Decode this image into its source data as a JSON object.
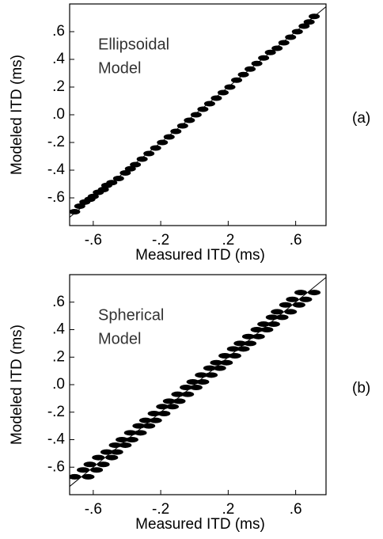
{
  "chart_data": [
    {
      "type": "scatter",
      "panel_label": "(a)",
      "annotation": [
        "Ellipsoidal",
        "Model"
      ],
      "x_label": "Measured ITD (ms)",
      "y_label": "Modeled ITD (ms)",
      "color": "#000000",
      "xlim": [
        -0.74,
        0.78
      ],
      "ylim": [
        -0.8,
        0.8
      ],
      "xticks": [
        {
          "value": -0.6,
          "label": "-.6"
        },
        {
          "value": -0.2,
          "label": "-.2"
        },
        {
          "value": 0.2,
          "label": ".2"
        },
        {
          "value": 0.6,
          "label": ".6"
        }
      ],
      "yticks": [
        {
          "value": 0.6,
          "label": ".6"
        },
        {
          "value": 0.4,
          "label": ".4"
        },
        {
          "value": 0.2,
          "label": ".2"
        },
        {
          "value": 0.0,
          "label": ".0"
        },
        {
          "value": -0.2,
          "label": "-.2"
        },
        {
          "value": -0.4,
          "label": "-.4"
        },
        {
          "value": -0.6,
          "label": "-.6"
        }
      ],
      "x": [
        -0.71,
        -0.68,
        -0.65,
        -0.62,
        -0.6,
        -0.57,
        -0.54,
        -0.52,
        -0.49,
        -0.45,
        -0.41,
        -0.38,
        -0.35,
        -0.31,
        -0.27,
        -0.23,
        -0.19,
        -0.15,
        -0.11,
        -0.07,
        -0.03,
        0.01,
        0.05,
        0.09,
        0.13,
        0.17,
        0.21,
        0.25,
        0.29,
        0.33,
        0.37,
        0.41,
        0.45,
        0.49,
        0.53,
        0.57,
        0.61,
        0.65,
        0.68,
        0.71
      ],
      "y": [
        -0.7,
        -0.66,
        -0.63,
        -0.61,
        -0.59,
        -0.56,
        -0.54,
        -0.51,
        -0.49,
        -0.46,
        -0.42,
        -0.39,
        -0.36,
        -0.32,
        -0.28,
        -0.24,
        -0.2,
        -0.16,
        -0.12,
        -0.08,
        -0.04,
        0.0,
        0.04,
        0.08,
        0.12,
        0.16,
        0.2,
        0.25,
        0.29,
        0.33,
        0.37,
        0.41,
        0.45,
        0.48,
        0.52,
        0.56,
        0.6,
        0.64,
        0.67,
        0.71
      ]
    },
    {
      "type": "scatter",
      "panel_label": "(b)",
      "annotation": [
        "Spherical",
        "Model"
      ],
      "x_label": "Measured ITD (ms)",
      "y_label": "Modeled ITD (ms)",
      "color": "#000000",
      "xlim": [
        -0.74,
        0.78
      ],
      "ylim": [
        -0.8,
        0.8
      ],
      "xticks": [
        {
          "value": -0.6,
          "label": "-.6"
        },
        {
          "value": -0.2,
          "label": "-.2"
        },
        {
          "value": 0.2,
          "label": ".2"
        },
        {
          "value": 0.6,
          "label": ".6"
        }
      ],
      "yticks": [
        {
          "value": 0.6,
          "label": ".6"
        },
        {
          "value": 0.4,
          "label": ".4"
        },
        {
          "value": 0.2,
          "label": ".2"
        },
        {
          "value": 0.0,
          "label": ".0"
        },
        {
          "value": -0.2,
          "label": "-.2"
        },
        {
          "value": -0.4,
          "label": "-.4"
        },
        {
          "value": -0.6,
          "label": "-.6"
        }
      ],
      "x": [
        -0.71,
        -0.63,
        -0.66,
        -0.58,
        -0.62,
        -0.54,
        -0.57,
        -0.49,
        -0.52,
        -0.46,
        -0.47,
        -0.41,
        -0.43,
        -0.37,
        -0.38,
        -0.32,
        -0.33,
        -0.27,
        -0.29,
        -0.23,
        -0.24,
        -0.18,
        -0.19,
        -0.13,
        -0.15,
        -0.09,
        -0.1,
        -0.04,
        -0.05,
        0.01,
        -0.01,
        0.05,
        0.04,
        0.1,
        0.09,
        0.15,
        0.13,
        0.19,
        0.18,
        0.24,
        0.23,
        0.29,
        0.27,
        0.33,
        0.32,
        0.38,
        0.37,
        0.43,
        0.41,
        0.47,
        0.46,
        0.52,
        0.49,
        0.57,
        0.54,
        0.62,
        0.58,
        0.66,
        0.63,
        0.71
      ],
      "y": [
        -0.67,
        -0.67,
        -0.62,
        -0.62,
        -0.58,
        -0.58,
        -0.53,
        -0.53,
        -0.49,
        -0.49,
        -0.44,
        -0.44,
        -0.4,
        -0.4,
        -0.35,
        -0.35,
        -0.3,
        -0.3,
        -0.26,
        -0.26,
        -0.21,
        -0.21,
        -0.16,
        -0.16,
        -0.12,
        -0.12,
        -0.07,
        -0.07,
        -0.02,
        -0.02,
        0.02,
        0.02,
        0.07,
        0.07,
        0.12,
        0.12,
        0.16,
        0.16,
        0.21,
        0.21,
        0.26,
        0.26,
        0.3,
        0.3,
        0.35,
        0.35,
        0.4,
        0.4,
        0.44,
        0.44,
        0.49,
        0.49,
        0.53,
        0.53,
        0.58,
        0.58,
        0.62,
        0.62,
        0.67,
        0.67
      ]
    }
  ]
}
